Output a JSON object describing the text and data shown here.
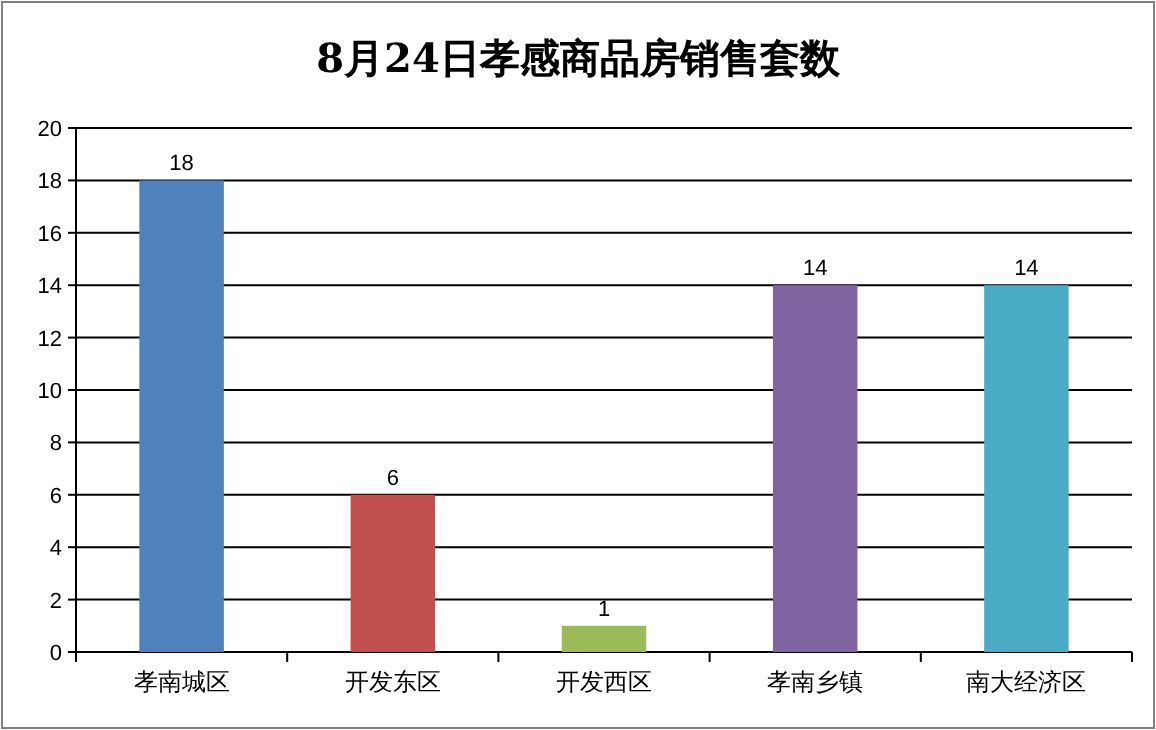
{
  "chart_data": {
    "type": "bar",
    "title": "8月24日孝感商品房销售套数",
    "categories": [
      "孝南城区",
      "开发东区",
      "开发西区",
      "孝南乡镇",
      "南大经济区"
    ],
    "values": [
      18,
      6,
      1,
      14,
      14
    ],
    "colors": [
      "#4f81bd",
      "#c0504d",
      "#9bbb59",
      "#8064a2",
      "#4bacc6"
    ],
    "ylim": [
      0,
      20
    ],
    "yticks": [
      0,
      2,
      4,
      6,
      8,
      10,
      12,
      14,
      16,
      18,
      20
    ],
    "grid": "y",
    "data_labels": true
  }
}
